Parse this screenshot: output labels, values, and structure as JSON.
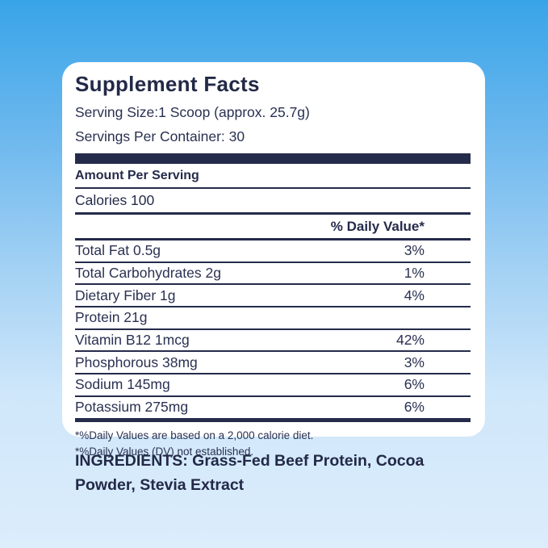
{
  "colors": {
    "background_gradient_top": "#38a4e8",
    "background_gradient_bottom": "#dcedfc",
    "card_background": "#ffffff",
    "text_navy": "#252b4a"
  },
  "panel": {
    "title": "Supplement Facts",
    "serving_size": "Serving Size:1 Scoop (approx. 25.7g)",
    "servings_per_container": "Servings Per Container: 30",
    "amount_per_serving": "Amount Per Serving",
    "calories": "Calories 100",
    "daily_value_header": "% Daily Value*",
    "rows": [
      {
        "name": "Total Fat 0.5g",
        "dv": "3%"
      },
      {
        "name": "Total Carbohydrates 2g",
        "dv": "1%"
      },
      {
        "name": "Dietary Fiber 1g",
        "dv": "4%"
      },
      {
        "name": "Protein 21g",
        "dv": ""
      },
      {
        "name": "Vitamin B12  1mcg",
        "dv": "42%"
      },
      {
        "name": "Phosphorous 38mg",
        "dv": "3%"
      },
      {
        "name": "Sodium 145mg",
        "dv": "6%"
      },
      {
        "name": "Potassium 275mg",
        "dv": "6%"
      }
    ],
    "footnotes": [
      "*%Daily Values are based on a 2,000 calorie diet.",
      "*%Daily Values (DV) not established."
    ]
  },
  "ingredients": {
    "text": "INGREDIENTS: Grass-Fed Beef Protein, Cocoa Powder, Stevia Extract"
  }
}
